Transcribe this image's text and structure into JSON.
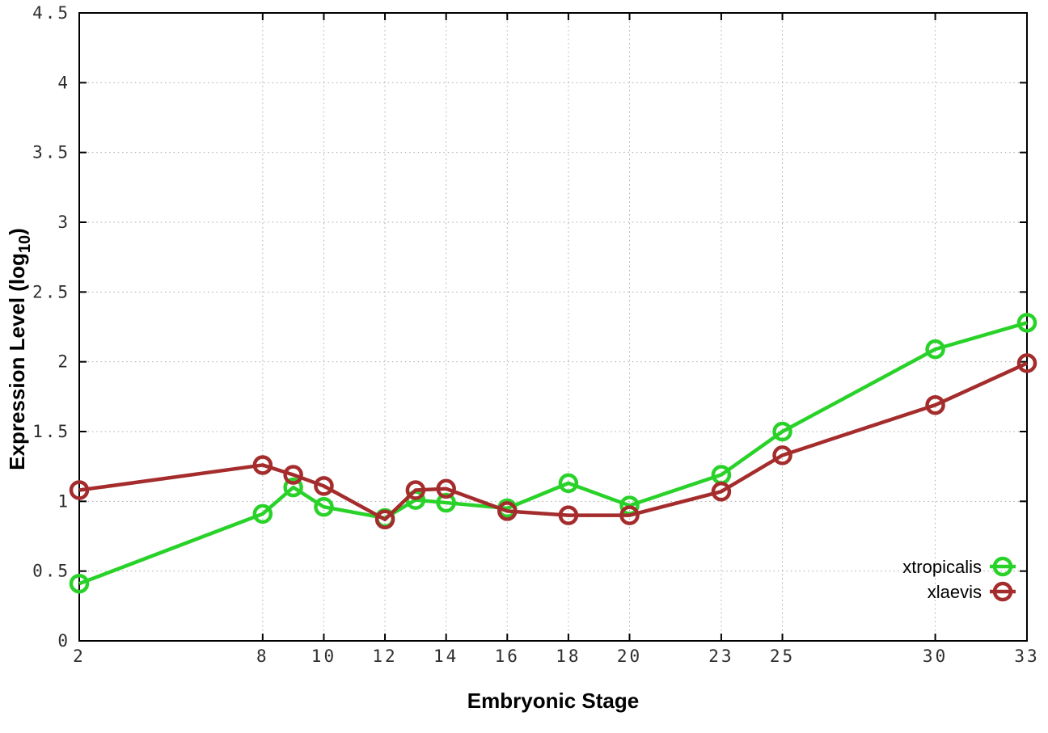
{
  "labels": {
    "x": "Embryonic Stage",
    "y_main": "Expression Level (log",
    "y_sub": "10",
    "y_close": ")"
  },
  "chart_data": {
    "type": "line",
    "title": "",
    "xlabel": "Embryonic Stage",
    "ylabel": "Expression Level (log10)",
    "x": [
      2,
      8,
      9,
      10,
      12,
      13,
      14,
      16,
      18,
      20,
      23,
      25,
      30,
      33
    ],
    "series": [
      {
        "name": "xtropicalis",
        "color": "#28d228",
        "marker": "open-circle",
        "values": [
          0.41,
          0.91,
          1.1,
          0.96,
          0.88,
          1.01,
          0.99,
          0.95,
          1.13,
          0.97,
          1.19,
          1.5,
          2.09,
          2.28
        ]
      },
      {
        "name": "xlaevis",
        "color": "#a52c2c",
        "marker": "open-circle",
        "values": [
          1.08,
          1.26,
          1.19,
          1.11,
          0.87,
          1.08,
          1.09,
          0.93,
          0.9,
          0.9,
          1.07,
          1.33,
          1.69,
          1.99
        ]
      }
    ],
    "xticks": [
      2,
      8,
      10,
      12,
      14,
      16,
      18,
      20,
      23,
      25,
      30,
      33
    ],
    "yticks": [
      0,
      0.5,
      1,
      1.5,
      2,
      2.5,
      3,
      3.5,
      4,
      4.5
    ],
    "xlim": [
      2,
      33
    ],
    "ylim": [
      0,
      4.5
    ],
    "grid": true,
    "legend_position": "inside-bottom-right",
    "legend_entries": [
      "xtropicalis",
      "xlaevis"
    ]
  }
}
